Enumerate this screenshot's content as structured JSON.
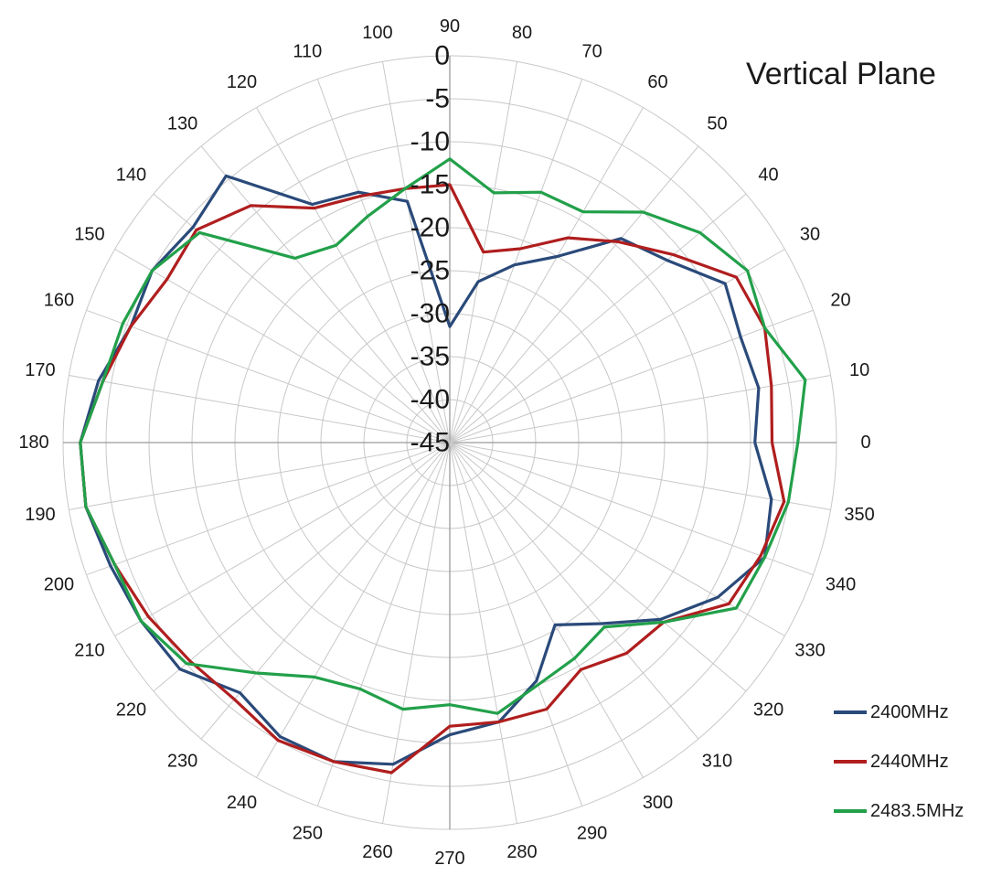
{
  "chart_data": {
    "type": "line",
    "subtype": "polar",
    "title": "Vertical Plane",
    "theta_unit": "degrees",
    "theta_direction": "counterclockwise",
    "theta_zero": "right",
    "theta_ticks": [
      0,
      10,
      20,
      30,
      40,
      50,
      60,
      70,
      80,
      90,
      100,
      110,
      120,
      130,
      140,
      150,
      160,
      170,
      180,
      190,
      200,
      210,
      220,
      230,
      240,
      250,
      260,
      270,
      280,
      290,
      300,
      310,
      320,
      330,
      340,
      350
    ],
    "r_range": [
      -45,
      0
    ],
    "r_ticks": [
      0,
      -5,
      -10,
      -15,
      -20,
      -25,
      -30,
      -35,
      -40,
      -45
    ],
    "grid": true,
    "legend": "bottom-right",
    "theta": [
      0,
      10,
      20,
      30,
      40,
      50,
      60,
      70,
      80,
      90,
      100,
      110,
      120,
      130,
      140,
      150,
      160,
      170,
      180,
      190,
      200,
      210,
      220,
      230,
      240,
      250,
      260,
      270,
      280,
      290,
      300,
      310,
      320,
      330,
      340,
      350
    ],
    "series": [
      {
        "name": "2400MHz",
        "color": "#2a4a7a",
        "values": [
          -9.5,
          -8.5,
          -9,
          -8,
          -12,
          -14,
          -20,
          -23,
          -26,
          -31.5,
          -16.5,
          -14,
          -13,
          -4.5,
          -6,
          -5,
          -5.5,
          -3.5,
          -2,
          -2,
          -3,
          -3.5,
          -4,
          -7,
          -5.5,
          -5.5,
          -7,
          -11,
          -12,
          -15.5,
          -20.5,
          -17.5,
          -13,
          -9,
          -6,
          -7
        ]
      },
      {
        "name": "2440MHz",
        "color": "#b01e1e",
        "values": [
          -7.5,
          -7,
          -6,
          -6.5,
          -11,
          -14.5,
          -17.5,
          -21,
          -22.5,
          -15,
          -15,
          -14.5,
          -13.5,
          -9,
          -6.5,
          -7,
          -5.5,
          -4,
          -2,
          -2,
          -3.5,
          -4.5,
          -5.5,
          -6,
          -5,
          -5.5,
          -6,
          -12,
          -12,
          -12,
          -14.5,
          -13,
          -12.5,
          -7.5,
          -6.5,
          -5.5
        ]
      },
      {
        "name": "2483.5MHz",
        "color": "#22a04a",
        "values": [
          -4.5,
          -3,
          -6,
          -5,
          -7,
          -10,
          -14,
          -14,
          -15.5,
          -12,
          -15,
          -17,
          -18.5,
          -17,
          -7,
          -5,
          -4.5,
          -4,
          -2,
          -2,
          -3.5,
          -3.5,
          -5,
          -10,
          -13.5,
          -14.5,
          -13.5,
          -14.5,
          -13,
          -15,
          -16,
          -17,
          -12.5,
          -6.5,
          -6,
          -5
        ]
      }
    ]
  }
}
